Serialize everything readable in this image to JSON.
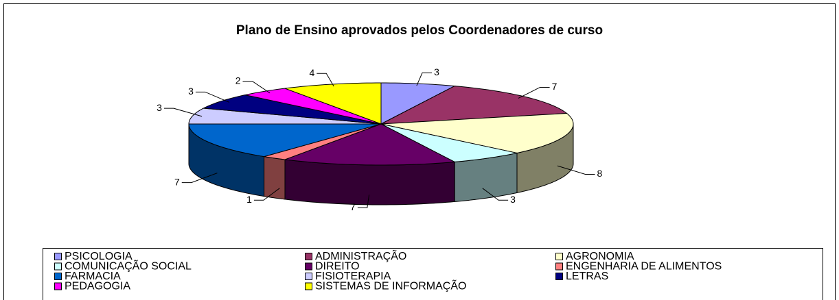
{
  "chart_data": {
    "type": "pie3d",
    "title": "Plano de Ensino aprovados pelos Coordenadores de curso",
    "categories": [
      "PSICOLOGIA",
      "ADMINISTRAÇÃO",
      "AGRONOMIA",
      "COMUNICAÇÃO SOCIAL",
      "DIREITO",
      "ENGENHARIA DE ALIMENTOS",
      "FARMACIA",
      "FISIOTERAPIA",
      "LETRAS",
      "PEDAGOGIA",
      "SISTEMAS DE INFORMAÇÃO"
    ],
    "values": [
      3,
      7,
      8,
      3,
      7,
      1,
      7,
      3,
      3,
      2,
      4
    ],
    "colors": [
      "#9999ff",
      "#993366",
      "#ffffcc",
      "#ccffff",
      "#660066",
      "#ff8080",
      "#0066cc",
      "#ccccff",
      "#000080",
      "#ff00ff",
      "#ffff00"
    ],
    "legend": "bottom"
  }
}
